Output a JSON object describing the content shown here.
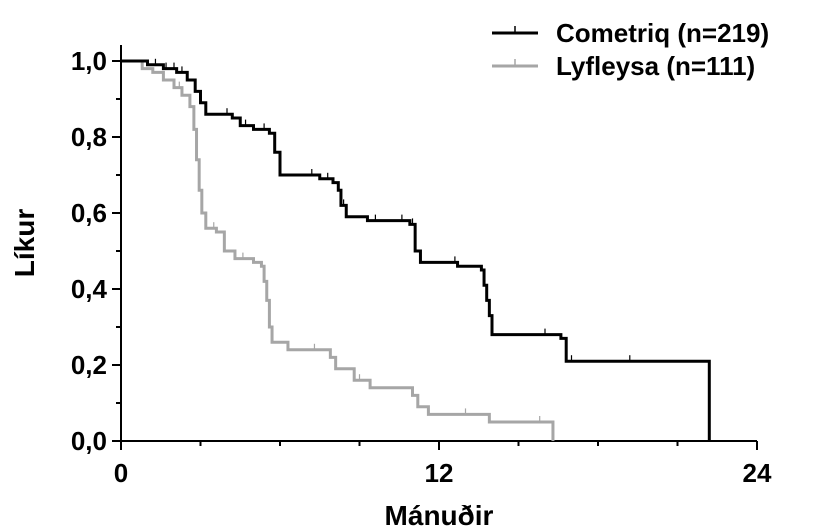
{
  "chart_data": {
    "type": "line",
    "title": "",
    "xlabel": "Mánuðir",
    "ylabel": "Líkur",
    "xlim": [
      0,
      24
    ],
    "ylim": [
      0,
      1
    ],
    "x_ticks": [
      0,
      12,
      24
    ],
    "x_tick_labels": [
      "0",
      "12",
      "24"
    ],
    "y_ticks": [
      0,
      0.2,
      0.4,
      0.6,
      0.8,
      1.0
    ],
    "y_tick_labels": [
      "0,0",
      "0,2",
      "0,4",
      "0,6",
      "0,8",
      "1,0"
    ],
    "grid": false,
    "legend_position": "top-right",
    "series": [
      {
        "name": "Cometriq (n=219)",
        "color": "#000000",
        "points": [
          [
            0,
            1.0
          ],
          [
            1.0,
            0.99
          ],
          [
            1.6,
            0.98
          ],
          [
            2.1,
            0.97
          ],
          [
            2.5,
            0.95
          ],
          [
            2.8,
            0.92
          ],
          [
            3.0,
            0.89
          ],
          [
            3.2,
            0.86
          ],
          [
            4.2,
            0.85
          ],
          [
            4.5,
            0.83
          ],
          [
            5.0,
            0.82
          ],
          [
            5.6,
            0.81
          ],
          [
            5.8,
            0.76
          ],
          [
            6.0,
            0.7
          ],
          [
            7.5,
            0.69
          ],
          [
            8.0,
            0.68
          ],
          [
            8.2,
            0.66
          ],
          [
            8.3,
            0.62
          ],
          [
            8.5,
            0.59
          ],
          [
            9.3,
            0.58
          ],
          [
            10.9,
            0.57
          ],
          [
            11.1,
            0.5
          ],
          [
            11.3,
            0.47
          ],
          [
            12.7,
            0.46
          ],
          [
            13.6,
            0.45
          ],
          [
            13.7,
            0.41
          ],
          [
            13.8,
            0.37
          ],
          [
            13.9,
            0.33
          ],
          [
            14.0,
            0.28
          ],
          [
            16.6,
            0.27
          ],
          [
            16.8,
            0.21
          ],
          [
            22.2,
            0.0
          ]
        ],
        "censor_x": [
          1.3,
          1.7,
          2.0,
          2.3,
          3.0,
          4.0,
          4.7,
          5.4,
          7.2,
          7.8,
          8.4,
          9.6,
          10.6,
          11.0,
          12.6,
          16.0,
          17.0,
          19.2,
          22.2
        ]
      },
      {
        "name": "Lyfleysa (n=111)",
        "color": "#a6a6a6",
        "points": [
          [
            0,
            1.0
          ],
          [
            0.8,
            0.98
          ],
          [
            1.2,
            0.97
          ],
          [
            1.6,
            0.95
          ],
          [
            2.0,
            0.93
          ],
          [
            2.3,
            0.91
          ],
          [
            2.6,
            0.88
          ],
          [
            2.75,
            0.82
          ],
          [
            2.85,
            0.74
          ],
          [
            2.95,
            0.66
          ],
          [
            3.05,
            0.6
          ],
          [
            3.2,
            0.56
          ],
          [
            3.6,
            0.55
          ],
          [
            3.9,
            0.5
          ],
          [
            4.3,
            0.48
          ],
          [
            5.0,
            0.47
          ],
          [
            5.3,
            0.46
          ],
          [
            5.4,
            0.42
          ],
          [
            5.5,
            0.37
          ],
          [
            5.6,
            0.3
          ],
          [
            5.7,
            0.26
          ],
          [
            6.3,
            0.24
          ],
          [
            7.9,
            0.22
          ],
          [
            8.1,
            0.19
          ],
          [
            8.8,
            0.16
          ],
          [
            9.4,
            0.14
          ],
          [
            11.0,
            0.12
          ],
          [
            11.2,
            0.09
          ],
          [
            11.6,
            0.07
          ],
          [
            13.9,
            0.05
          ],
          [
            16.3,
            0.0
          ]
        ],
        "censor_x": [
          2.2,
          3.5,
          4.6,
          7.3,
          9.0,
          13.0,
          15.8
        ]
      }
    ]
  }
}
